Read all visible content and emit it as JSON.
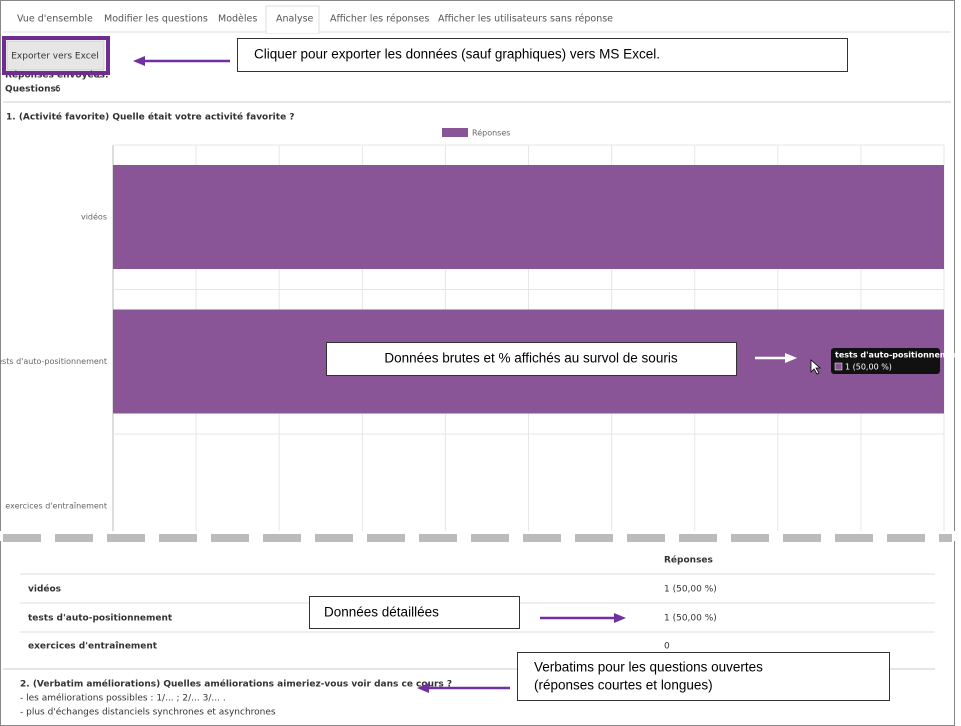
{
  "tabs": [
    "Vue d'ensemble",
    "Modifier les questions",
    "Modèles",
    "Analyse",
    "Afficher les réponses",
    "Afficher les utilisateurs sans réponse"
  ],
  "export_button": "Exporter vers Excel",
  "summary": [
    {
      "label": "Réponses envoyées:",
      "value": 2
    },
    {
      "label": "Questions:",
      "value": 6
    }
  ],
  "question1_title": "1. (Activité favorite) Quelle était votre activité favorite ?",
  "chart_data": {
    "type": "bar",
    "orientation": "horizontal",
    "categories": [
      "vidéos",
      "tests d'auto-positionnement",
      "exercices d'entraînement"
    ],
    "series": [
      {
        "name": "Réponses",
        "color": "#8a5597",
        "values": [
          1,
          1,
          0
        ]
      }
    ],
    "xlim": [
      0,
      1
    ],
    "xticks": [
      0,
      0.1,
      0.2,
      0.3,
      0.4,
      0.5,
      0.6,
      0.7,
      0.8,
      0.9,
      1
    ],
    "grid": true,
    "legend": "top"
  },
  "tooltip": {
    "title": "tests d'auto-positionnement",
    "text": "1 (50,00 %)"
  },
  "table": {
    "header": "Réponses",
    "rows": [
      [
        "vidéos",
        "1 (50,00 %)"
      ],
      [
        "tests d'auto-positionnement",
        "1 (50,00 %)"
      ],
      [
        "exercices d'entraînement",
        "0"
      ]
    ]
  },
  "question2": {
    "title": "2. (Verbatim améliorations) Quelles améliorations aimeriez-vous voir dans ce cours ?",
    "answers": [
      "- les améliorations possibles : 1/... ; 2/... 3/... .",
      "- plus d'échanges distanciels synchrones et asynchrones"
    ]
  },
  "annotations": [
    "Cliquer pour exporter les données (sauf graphiques) vers MS Excel.",
    "Données brutes et % affichés au survol de souris",
    "Données détaillées",
    "Verbatims pour les questions ouvertes",
    "(réponses courtes et longues)"
  ]
}
